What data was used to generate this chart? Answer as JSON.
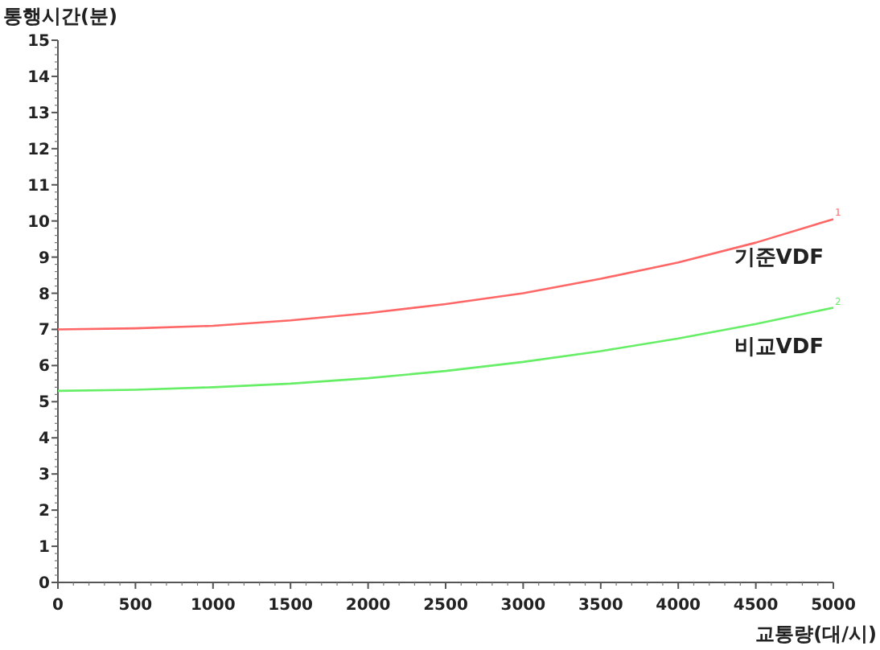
{
  "chart_data": {
    "type": "line",
    "ylabel": "통행시간(분)",
    "xlabel": "교통량(대/시)",
    "x": [
      0,
      500,
      1000,
      1500,
      2000,
      2500,
      3000,
      3500,
      4000,
      4500,
      5000
    ],
    "xlim": [
      0,
      5000
    ],
    "xticks": [
      0,
      500,
      1000,
      1500,
      2000,
      2500,
      3000,
      3500,
      4000,
      4500,
      5000
    ],
    "ylim": [
      0,
      15
    ],
    "yticks": [
      0,
      1,
      2,
      3,
      4,
      5,
      6,
      7,
      8,
      9,
      10,
      11,
      12,
      13,
      14,
      15
    ],
    "grid": false,
    "legend": false,
    "marker": "none",
    "line_style": "solid",
    "series": [
      {
        "name": "기준VDF",
        "color": "#ff6666",
        "values": [
          7.0,
          7.03,
          7.1,
          7.25,
          7.45,
          7.7,
          8.0,
          8.4,
          8.85,
          9.4,
          10.05
        ]
      },
      {
        "name": "비교VDF",
        "color": "#66ee66",
        "values": [
          5.3,
          5.33,
          5.4,
          5.5,
          5.65,
          5.85,
          6.1,
          6.4,
          6.75,
          7.15,
          7.6
        ]
      }
    ],
    "annotations": [
      {
        "text": "1",
        "x": 5000,
        "y": 10.05
      },
      {
        "text": "2",
        "x": 5000,
        "y": 7.6
      }
    ]
  }
}
